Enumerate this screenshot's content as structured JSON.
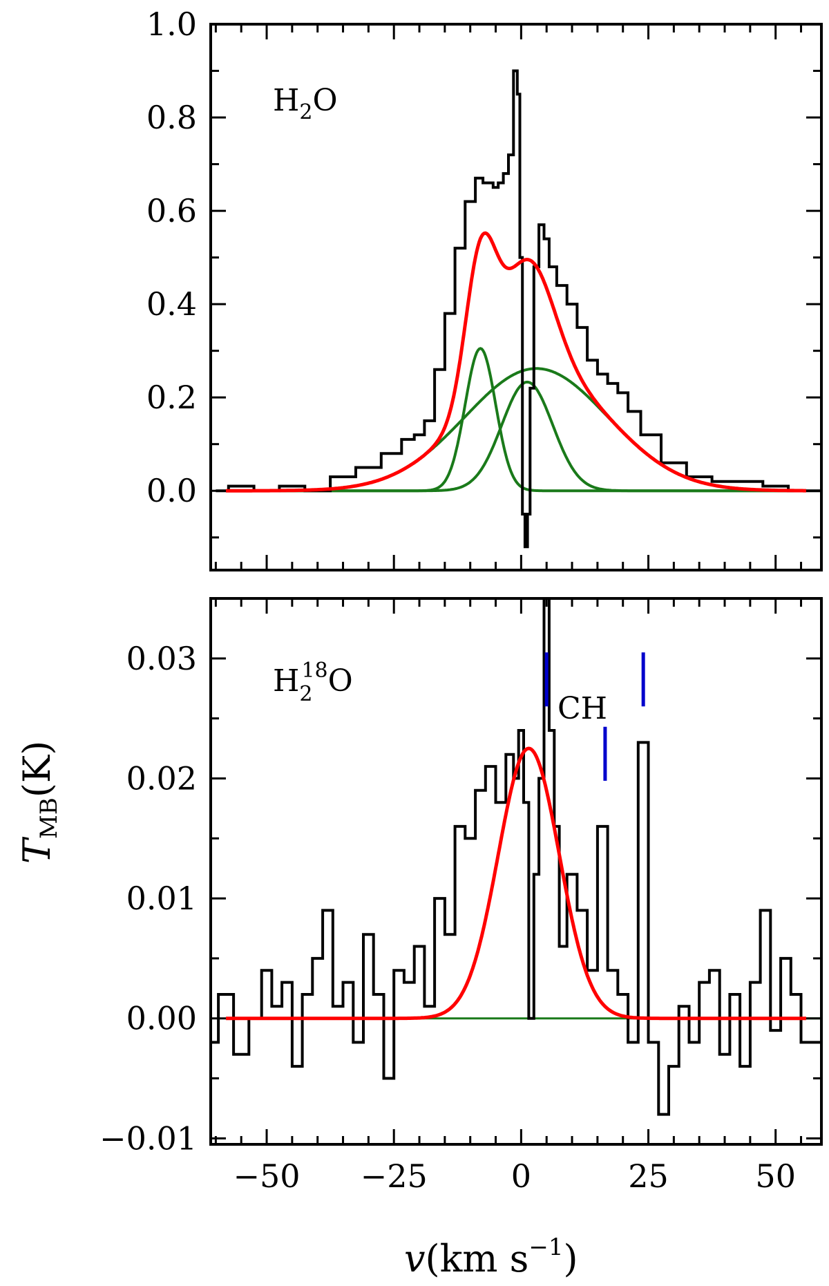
{
  "figure": {
    "ylabel": "T_MB(K)",
    "xlabel": "v(km s^-1)"
  },
  "chart_data": [
    {
      "type": "line",
      "panel": "top",
      "label": "H2O",
      "xlabel": "v(km s^-1)",
      "ylabel": "T_MB(K)",
      "xlim": [
        -61,
        59
      ],
      "ylim": [
        -0.17,
        1.0
      ],
      "grid": false,
      "x_ticks": [
        -50,
        -25,
        0,
        25,
        50
      ],
      "y_ticks": [
        0.0,
        0.2,
        0.4,
        0.6,
        0.8,
        1.0
      ],
      "y_tick_labels": [
        "0.0",
        "0.2",
        "0.4",
        "0.6",
        "0.8",
        "1.0"
      ],
      "observed": {
        "color": "#000000",
        "x": [
          -60,
          -55,
          -50,
          -45,
          -40,
          -35,
          -30,
          -25,
          -22,
          -20,
          -18,
          -16,
          -14,
          -12,
          -10,
          -8,
          -7,
          -6,
          -5,
          -4,
          -3,
          -2,
          -1,
          -0.5,
          0,
          0.5,
          1,
          1.5,
          2,
          3,
          4,
          5,
          6,
          8,
          10,
          12,
          14,
          16,
          18,
          20,
          22,
          25,
          30,
          35,
          40,
          45,
          50,
          55,
          59
        ],
        "y": [
          0.0,
          0.01,
          0.0,
          0.01,
          0.0,
          0.03,
          0.05,
          0.08,
          0.11,
          0.12,
          0.15,
          0.26,
          0.38,
          0.52,
          0.62,
          0.67,
          0.66,
          0.66,
          0.65,
          0.66,
          0.68,
          0.72,
          0.9,
          0.85,
          0.5,
          -0.05,
          -0.12,
          -0.05,
          0.22,
          0.48,
          0.57,
          0.54,
          0.48,
          0.44,
          0.4,
          0.35,
          0.28,
          0.25,
          0.23,
          0.21,
          0.17,
          0.12,
          0.06,
          0.03,
          0.02,
          0.02,
          0.01,
          0.0,
          0.0
        ]
      },
      "fit": {
        "color": "#ff0000",
        "components": [
          {
            "center": -8,
            "amplitude": 0.305,
            "sigma": 3.0
          },
          {
            "center": 1.2,
            "amplitude": 0.233,
            "sigma": 5.0
          },
          {
            "center": 3.0,
            "amplitude": 0.262,
            "sigma": 14.0
          }
        ],
        "x_range": [
          -58,
          56
        ]
      },
      "components_color": "#1a7a1a"
    },
    {
      "type": "line",
      "panel": "bottom",
      "label": "H2 18O",
      "xlabel": "v(km s^-1)",
      "ylabel": "T_MB(K)",
      "xlim": [
        -61,
        59
      ],
      "ylim": [
        -0.0105,
        0.035
      ],
      "grid": false,
      "x_ticks": [
        -50,
        -25,
        0,
        25,
        50
      ],
      "x_tick_labels": [
        "-50",
        "-25",
        "0",
        "25",
        "50"
      ],
      "y_ticks": [
        -0.01,
        0.0,
        0.01,
        0.02,
        0.03
      ],
      "y_tick_labels": [
        "-0.01",
        "0.00",
        "0.01",
        "0.02",
        "0.03"
      ],
      "observed": {
        "color": "#000000",
        "x": [
          -61,
          -58,
          -55,
          -52,
          -50,
          -48,
          -46,
          -44,
          -42,
          -40,
          -38,
          -36,
          -34,
          -32,
          -30,
          -28,
          -26,
          -24,
          -22,
          -20,
          -18,
          -16,
          -14,
          -12,
          -10,
          -8,
          -6,
          -4,
          -2,
          -1,
          0,
          1,
          2,
          3,
          4,
          5,
          6,
          7,
          8,
          10,
          12,
          14,
          16,
          18,
          20,
          22,
          24,
          26,
          28,
          30,
          32,
          34,
          36,
          38,
          40,
          42,
          44,
          46,
          48,
          50,
          52,
          54,
          56,
          59
        ],
        "y": [
          -0.002,
          0.002,
          -0.003,
          0.0,
          0.004,
          0.001,
          0.003,
          -0.004,
          0.002,
          0.005,
          0.009,
          0.001,
          0.003,
          -0.002,
          0.007,
          0.002,
          -0.005,
          0.004,
          0.003,
          0.006,
          0.001,
          0.01,
          0.007,
          0.016,
          0.015,
          0.019,
          0.021,
          0.018,
          0.022,
          0.02,
          0.024,
          0.018,
          0.0,
          0.012,
          0.02,
          0.035,
          0.024,
          0.016,
          0.006,
          0.012,
          0.009,
          0.004,
          0.016,
          0.004,
          0.002,
          -0.002,
          0.023,
          -0.002,
          -0.008,
          -0.004,
          0.001,
          -0.002,
          0.003,
          0.004,
          -0.003,
          0.002,
          -0.004,
          0.003,
          0.009,
          -0.001,
          0.005,
          0.002,
          -0.002,
          -0.002
        ]
      },
      "fit": {
        "color": "#ff0000",
        "components": [
          {
            "center": 1.5,
            "amplitude": 0.0225,
            "sigma": 6.0
          }
        ],
        "x_range": [
          -58,
          56
        ]
      },
      "baseline": {
        "color": "#1a7a1a",
        "value": 0.0
      },
      "annotation": {
        "text": "CH",
        "color": "#0000cc",
        "markers": [
          {
            "x": 5,
            "y_top": 0.0305,
            "y_bottom": 0.026
          },
          {
            "x": 16.5,
            "y_top": 0.0243,
            "y_bottom": 0.0198
          },
          {
            "x": 24,
            "y_top": 0.0305,
            "y_bottom": 0.026
          }
        ]
      }
    }
  ]
}
